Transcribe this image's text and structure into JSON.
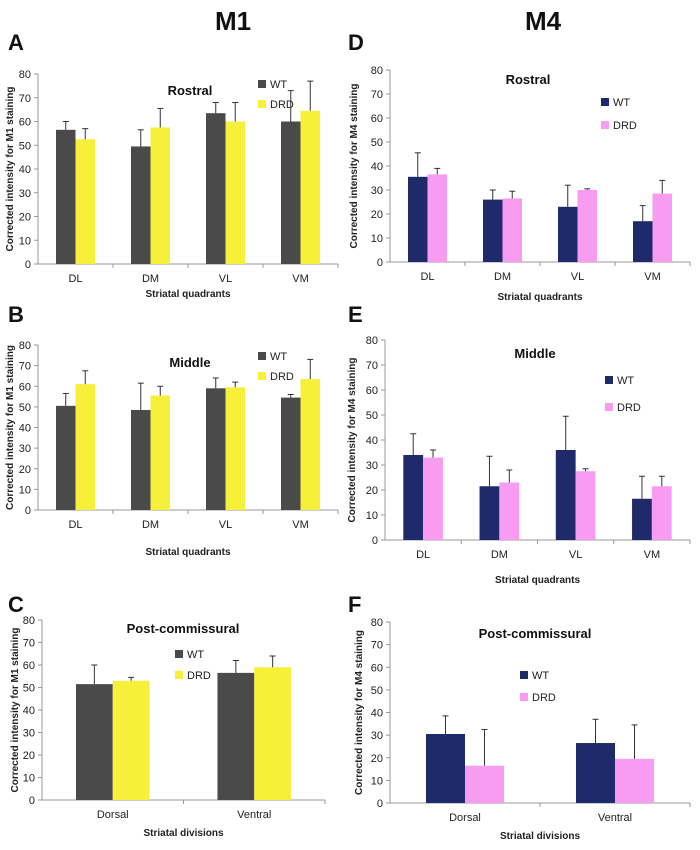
{
  "figure": {
    "col_titles": {
      "left": "M1",
      "right": "M4"
    }
  },
  "colors": {
    "m1_wt": "#4a4a4a",
    "m1_drd": "#f7f03a",
    "m4_wt": "#1f2a6b",
    "m4_drd": "#f79cf0"
  },
  "chart_data": [
    {
      "panel": "A",
      "type": "bar",
      "title": "Rostral",
      "xlabel": "Striatal quadrants",
      "ylabel": "Corrected intensity for M1 staining",
      "ylim": [
        0,
        80
      ],
      "yticks": [
        "0",
        "10",
        "20",
        "30",
        "40",
        "50",
        "60",
        "70",
        "80"
      ],
      "categories": [
        "DL",
        "DM",
        "VL",
        "VM"
      ],
      "legend": [
        "WT",
        "DRD"
      ],
      "legend_position": "top-right",
      "series": [
        {
          "name": "WT",
          "values": [
            56.5,
            49.5,
            63.5,
            60
          ],
          "errors": [
            3.5,
            7,
            4.5,
            13
          ]
        },
        {
          "name": "DRD",
          "values": [
            52.5,
            57.5,
            60,
            64.5
          ],
          "errors": [
            4.5,
            8,
            8,
            12.5
          ]
        }
      ]
    },
    {
      "panel": "B",
      "type": "bar",
      "title": "Middle",
      "xlabel": "Striatal quadrants",
      "ylabel": "Corrected intensity for M1 staining",
      "ylim": [
        0,
        80
      ],
      "yticks": [
        "0",
        "10",
        "20",
        "30",
        "40",
        "50",
        "60",
        "70",
        "80"
      ],
      "categories": [
        "DL",
        "DM",
        "VL",
        "VM"
      ],
      "legend": [
        "WT",
        "DRD"
      ],
      "legend_position": "top-right",
      "series": [
        {
          "name": "WT",
          "values": [
            50.5,
            48.5,
            59,
            54.5
          ],
          "errors": [
            6,
            13,
            5,
            1.5
          ]
        },
        {
          "name": "DRD",
          "values": [
            61,
            55.5,
            59.5,
            63.5
          ],
          "errors": [
            6.5,
            4.5,
            2.5,
            9.5
          ]
        }
      ]
    },
    {
      "panel": "C",
      "type": "bar",
      "title": "Post-commissural",
      "xlabel": "Striatal divisions",
      "ylabel": "Corrected intensity for M1 staining",
      "ylim": [
        0,
        80
      ],
      "yticks": [
        "0",
        "10",
        "20",
        "30",
        "40",
        "50",
        "60",
        "70",
        "80"
      ],
      "categories": [
        "Dorsal",
        "Ventral"
      ],
      "legend": [
        "WT",
        "DRD"
      ],
      "legend_position": "top-right",
      "series": [
        {
          "name": "WT",
          "values": [
            51.5,
            56.5
          ],
          "errors": [
            8.5,
            5.5
          ]
        },
        {
          "name": "DRD",
          "values": [
            53,
            59
          ],
          "errors": [
            1.5,
            5
          ]
        }
      ]
    },
    {
      "panel": "D",
      "type": "bar",
      "title": "Rostral",
      "xlabel": "Striatal quadrants",
      "ylabel": "Corrected intensity for M4 staining",
      "ylim": [
        0,
        80
      ],
      "yticks": [
        "0",
        "10",
        "20",
        "30",
        "40",
        "50",
        "60",
        "70",
        "80"
      ],
      "categories": [
        "DL",
        "DM",
        "VL",
        "VM"
      ],
      "legend": [
        "WT",
        "DRD"
      ],
      "legend_position": "top-right",
      "series": [
        {
          "name": "WT",
          "values": [
            35.5,
            26,
            23,
            17
          ],
          "errors": [
            10,
            4,
            9,
            6.5
          ]
        },
        {
          "name": "DRD",
          "values": [
            36.5,
            26.5,
            30,
            28.5
          ],
          "errors": [
            2.5,
            3,
            0.5,
            5.5
          ]
        }
      ]
    },
    {
      "panel": "E",
      "type": "bar",
      "title": "Middle",
      "xlabel": "Striatal quadrants",
      "ylabel": "Corrected intensity for M4 staining",
      "ylim": [
        0,
        80
      ],
      "yticks": [
        "0",
        "10",
        "20",
        "30",
        "40",
        "50",
        "60",
        "70",
        "80"
      ],
      "categories": [
        "DL",
        "DM",
        "VL",
        "VM"
      ],
      "legend": [
        "WT",
        "DRD"
      ],
      "legend_position": "top-right",
      "series": [
        {
          "name": "WT",
          "values": [
            34,
            21.5,
            36,
            16.5
          ],
          "errors": [
            8.5,
            12,
            13.5,
            9
          ]
        },
        {
          "name": "DRD",
          "values": [
            33,
            23,
            27.5,
            21.5
          ],
          "errors": [
            3,
            5,
            1,
            4
          ]
        }
      ]
    },
    {
      "panel": "F",
      "type": "bar",
      "title": "Post-commissural",
      "xlabel": "Striatal divisions",
      "ylabel": "Corrected intensity for M4 staining",
      "ylim": [
        0,
        80
      ],
      "yticks": [
        "0",
        "10",
        "20",
        "30",
        "40",
        "50",
        "60",
        "70",
        "80"
      ],
      "categories": [
        "Dorsal",
        "Ventral"
      ],
      "legend": [
        "WT",
        "DRD"
      ],
      "legend_position": "top-right",
      "series": [
        {
          "name": "WT",
          "values": [
            30.5,
            26.5
          ],
          "errors": [
            8,
            10.5
          ]
        },
        {
          "name": "DRD",
          "values": [
            16.5,
            19.5
          ],
          "errors": [
            16,
            15
          ]
        }
      ]
    }
  ]
}
